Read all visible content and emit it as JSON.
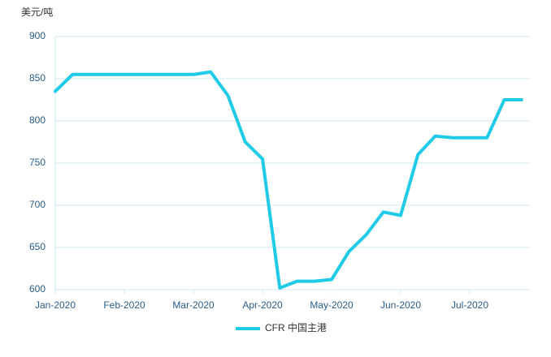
{
  "chart_data": {
    "type": "line",
    "y_label": "美元/吨",
    "categories": [
      "Jan-2020",
      null,
      null,
      null,
      "Feb-2020",
      null,
      null,
      null,
      "Mar-2020",
      null,
      null,
      null,
      "Apr-2020",
      null,
      null,
      null,
      "May-2020",
      null,
      null,
      null,
      "Jun-2020",
      null,
      null,
      null,
      "Jul-2020",
      null,
      null,
      null
    ],
    "series": [
      {
        "name": "CFR 中国主港",
        "color": "#1fcbe6",
        "values": [
          835,
          855,
          855,
          855,
          855,
          855,
          855,
          855,
          855,
          858,
          830,
          775,
          755,
          602,
          610,
          610,
          612,
          645,
          665,
          692,
          688,
          760,
          782,
          780,
          780,
          780,
          825,
          825
        ]
      }
    ],
    "ylim": [
      600,
      900
    ],
    "yticks": [
      600,
      650,
      700,
      750,
      800,
      850,
      900
    ],
    "grid": true,
    "legend": "bottom"
  }
}
